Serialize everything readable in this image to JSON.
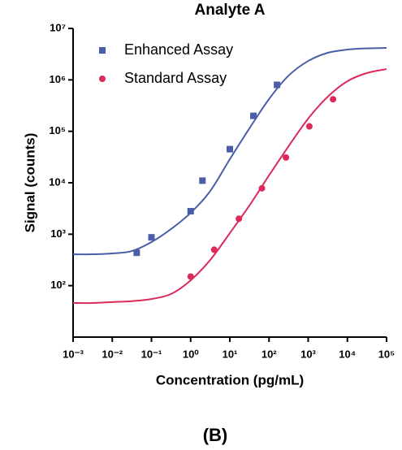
{
  "chart_data": {
    "type": "scatter",
    "title": "Analyte  A",
    "xlabel": "Concentration (pg/mL)",
    "ylabel": "Signal (counts)",
    "caption": "(B)",
    "xscale": "log",
    "yscale": "log",
    "xlim": [
      0.001,
      100000
    ],
    "ylim": [
      10,
      10000000
    ],
    "xticks": [
      {
        "value": 0.001,
        "label": "10⁻³"
      },
      {
        "value": 0.01,
        "label": "10⁻²"
      },
      {
        "value": 0.1,
        "label": "10⁻¹"
      },
      {
        "value": 1,
        "label": "10⁰"
      },
      {
        "value": 10,
        "label": "10¹"
      },
      {
        "value": 100,
        "label": "10²"
      },
      {
        "value": 1000,
        "label": "10³"
      },
      {
        "value": 10000,
        "label": "10⁴"
      },
      {
        "value": 100000,
        "label": "10⁵"
      }
    ],
    "yticks": [
      {
        "value": 100,
        "label": "10²"
      },
      {
        "value": 1000,
        "label": "10³"
      },
      {
        "value": 10000,
        "label": "10⁴"
      },
      {
        "value": 100000,
        "label": "10⁵"
      },
      {
        "value": 1000000,
        "label": "10⁶"
      },
      {
        "value": 10000000,
        "label": "10⁷"
      }
    ],
    "legend": "upper left",
    "curve_x": [
      0.001,
      0.00316,
      0.01,
      0.0316,
      0.1,
      0.316,
      1,
      3.16,
      10,
      31.6,
      100,
      316,
      1000,
      3160,
      10000,
      31600,
      100000
    ],
    "series": [
      {
        "name": "Enhanced Assay",
        "color": "#4a5ea8",
        "marker": "square",
        "x": [
          0.042,
          0.1,
          1,
          2,
          10,
          40,
          160
        ],
        "values": [
          436,
          870,
          2800,
          11000,
          45000,
          200000,
          800000
        ],
        "curve_values": [
          407,
          407,
          423,
          471,
          703,
          1260,
          2600,
          6900,
          28700,
          114000,
          423000,
          1210000,
          2330000,
          3360000,
          3880000,
          4100000,
          4180000
        ]
      },
      {
        "name": "Standard Assay",
        "color": "#dc2a5a",
        "marker": "circle",
        "x": [
          1,
          4,
          17,
          66,
          270,
          1070,
          4300
        ],
        "values": [
          150,
          500,
          2000,
          7800,
          31000,
          125000,
          420000
        ],
        "curve_values": [
          46,
          46,
          48,
          50,
          55,
          69,
          127,
          316,
          1050,
          3610,
          13900,
          51300,
          177000,
          472000,
          942000,
          1360000,
          1620000
        ]
      }
    ]
  }
}
